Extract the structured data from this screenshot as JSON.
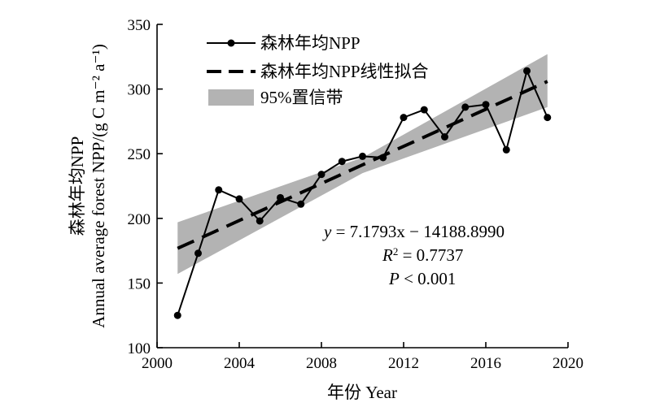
{
  "chart_data": {
    "type": "line",
    "xlabel": "年份 Year",
    "ylabel_line1": "森林年均NPP",
    "ylabel_line2": "Annual average forest NPP/(g C m⁻² a⁻¹)",
    "xlim": [
      2000,
      2020
    ],
    "ylim": [
      100,
      350
    ],
    "xticks": [
      2000,
      2004,
      2008,
      2012,
      2016,
      2020
    ],
    "yticks": [
      100,
      150,
      200,
      250,
      300,
      350
    ],
    "grid": false,
    "legend_position": "top-left",
    "legend": [
      {
        "label": "森林年均NPP",
        "kind": "line-marker"
      },
      {
        "label": "森林年均NPP线性拟合",
        "kind": "dashed"
      },
      {
        "label": "95%置信带",
        "kind": "band"
      }
    ],
    "series": [
      {
        "name": "森林年均NPP",
        "x": [
          2001,
          2002,
          2003,
          2004,
          2005,
          2006,
          2007,
          2008,
          2009,
          2010,
          2011,
          2012,
          2013,
          2014,
          2015,
          2016,
          2017,
          2018,
          2019
        ],
        "y": [
          125,
          173,
          222,
          215,
          198,
          216,
          211,
          234,
          244,
          248,
          247,
          278,
          284,
          263,
          286,
          288,
          253,
          314,
          278
        ]
      }
    ],
    "fit": {
      "name": "森林年均NPP线性拟合",
      "x": [
        2001,
        2019
      ],
      "y": [
        176.8,
        305.9
      ]
    },
    "confidence_band": {
      "name": "95%置信带",
      "x": [
        2001,
        2010,
        2019
      ],
      "lower": [
        157,
        235,
        286
      ],
      "upper": [
        197,
        247,
        327
      ]
    },
    "annotations": {
      "equation_lhs": "y",
      "equation_rhs": " = 7.1793x − 14188.8990",
      "r2_symbol": "R",
      "r2_sup": "2",
      "r2_value": " = 0.7737",
      "p_symbol": "P",
      "p_value": " < 0.001"
    },
    "colors": {
      "data_line": "#000000",
      "fit_line": "#000000",
      "band_fill": "#b3b3b3"
    }
  }
}
